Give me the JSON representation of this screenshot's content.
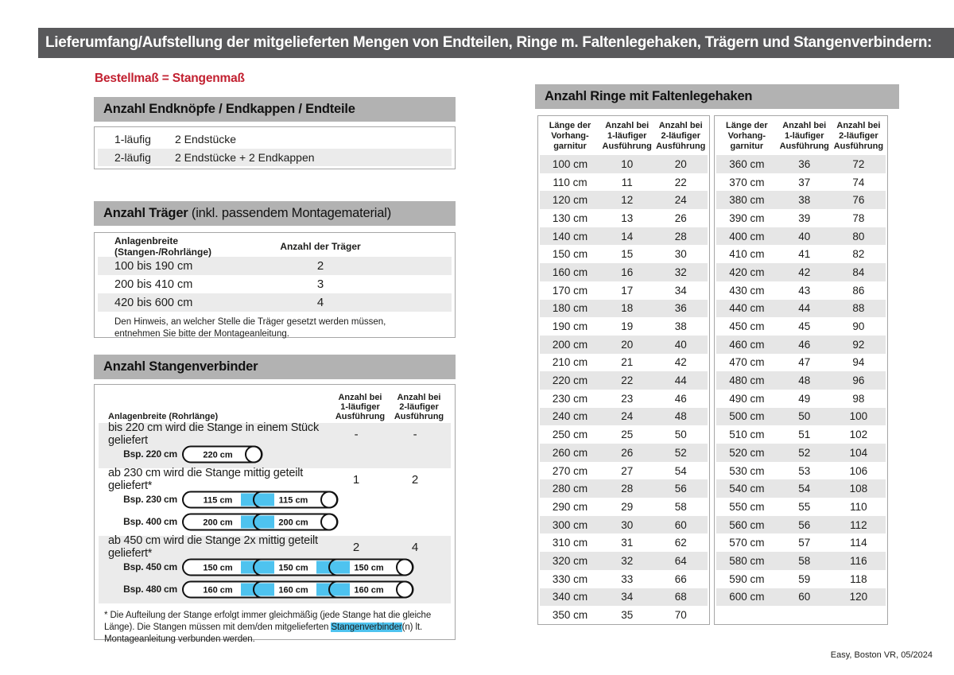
{
  "page": {
    "title": "Lieferumfang/Aufstellung der mitgelieferten Mengen von Endteilen, Ringe m. Faltenlegehaken, Trägern und Stangenverbindern:",
    "subtitle": "Bestellmaß = Stangenmaß",
    "footer": "Easy, Boston VR, 05/2024"
  },
  "colors": {
    "topbar_gray": "#59595b",
    "section_header_gray": "#b2b2b2",
    "stripe_gray": "#ebebeb",
    "accent_red": "#c22030",
    "connector_blue": "#4ec3ef",
    "outline_black": "#111111"
  },
  "endteile": {
    "header": "Anzahl Endknöpfe / Endkappen / Endteile",
    "rows": [
      {
        "label": "1-läufig",
        "value": "2 Endstücke"
      },
      {
        "label": "2-läufig",
        "value": "2 Endstücke + 2 Endkappen"
      }
    ]
  },
  "traeger": {
    "header_bold": "Anzahl Träger",
    "header_rest": " (inkl. passendem Montagematerial)",
    "col1": "Anlagenbreite (Stangen-/Rohrlänge)",
    "col2": "Anzahl der Träger",
    "rows": [
      {
        "range": "100 bis 190 cm",
        "count": "2"
      },
      {
        "range": "200 bis 410 cm",
        "count": "3"
      },
      {
        "range": "420 bis 600 cm",
        "count": "4"
      }
    ],
    "note": "Den Hinweis, an welcher Stelle die Träger gesetzt werden müssen, entnehmen Sie bitte der Montageanleitung."
  },
  "stangenverbinder": {
    "header": "Anzahl Stangenverbinder",
    "col1": "Anlagenbreite (Rohrlänge)",
    "col2": "Anzahl bei\n1-läufiger\nAusführung",
    "col3": "Anzahl bei\n2-läufiger\nAusführung",
    "blocks": [
      {
        "text": "bis 220 cm wird die Stange in einem Stück geliefert",
        "val1": "-",
        "val2": "-",
        "shaded": true,
        "rods": [
          {
            "label": "Bsp. 220 cm",
            "segments": [
              "220 cm"
            ]
          }
        ]
      },
      {
        "text": "ab 230 cm wird die Stange mittig geteilt geliefert*",
        "val1": "1",
        "val2": "2",
        "shaded": false,
        "rods": [
          {
            "label": "Bsp. 230 cm",
            "segments": [
              "115 cm",
              "115 cm"
            ]
          },
          {
            "label": "Bsp. 400 cm",
            "segments": [
              "200 cm",
              "200 cm"
            ]
          }
        ]
      },
      {
        "text": "ab 450 cm wird die Stange 2x mittig geteilt geliefert*",
        "val1": "2",
        "val2": "4",
        "shaded": true,
        "rods": [
          {
            "label": "Bsp. 450 cm",
            "segments": [
              "150 cm",
              "150 cm",
              "150 cm"
            ]
          },
          {
            "label": "Bsp. 480 cm",
            "segments": [
              "160 cm",
              "160 cm",
              "160 cm"
            ]
          }
        ]
      }
    ],
    "footnote_pre": "* Die Aufteilung der Stange erfolgt immer gleichmäßig (jede Stange hat die gleiche Länge). Die Stangen müssen mit dem/den mitgelieferten ",
    "footnote_highlight": "Stangenverbinder",
    "footnote_post": "(n) lt. Montageanleitung verbunden werden."
  },
  "ringe": {
    "header": "Anzahl Ringe mit Faltenlegehaken",
    "col_headers": [
      "Länge der\nVorhang-\ngarnitur",
      "Anzahl bei\n1-läufiger\nAusführung",
      "Anzahl bei\n2-läufiger\nAusführung"
    ],
    "table1": [
      [
        "100 cm",
        10,
        20
      ],
      [
        "110 cm",
        11,
        22
      ],
      [
        "120 cm",
        12,
        24
      ],
      [
        "130 cm",
        13,
        26
      ],
      [
        "140 cm",
        14,
        28
      ],
      [
        "150 cm",
        15,
        30
      ],
      [
        "160 cm",
        16,
        32
      ],
      [
        "170 cm",
        17,
        34
      ],
      [
        "180 cm",
        18,
        36
      ],
      [
        "190 cm",
        19,
        38
      ],
      [
        "200 cm",
        20,
        40
      ],
      [
        "210 cm",
        21,
        42
      ],
      [
        "220 cm",
        22,
        44
      ],
      [
        "230 cm",
        23,
        46
      ],
      [
        "240 cm",
        24,
        48
      ],
      [
        "250 cm",
        25,
        50
      ],
      [
        "260 cm",
        26,
        52
      ],
      [
        "270 cm",
        27,
        54
      ],
      [
        "280 cm",
        28,
        56
      ],
      [
        "290 cm",
        29,
        58
      ],
      [
        "300 cm",
        30,
        60
      ],
      [
        "310 cm",
        31,
        62
      ],
      [
        "320 cm",
        32,
        64
      ],
      [
        "330 cm",
        33,
        66
      ],
      [
        "340 cm",
        34,
        68
      ],
      [
        "350 cm",
        35,
        70
      ]
    ],
    "table2": [
      [
        "360 cm",
        36,
        72
      ],
      [
        "370 cm",
        37,
        74
      ],
      [
        "380 cm",
        38,
        76
      ],
      [
        "390 cm",
        39,
        78
      ],
      [
        "400 cm",
        40,
        80
      ],
      [
        "410 cm",
        41,
        82
      ],
      [
        "420 cm",
        42,
        84
      ],
      [
        "430 cm",
        43,
        86
      ],
      [
        "440 cm",
        44,
        88
      ],
      [
        "450 cm",
        45,
        90
      ],
      [
        "460 cm",
        46,
        92
      ],
      [
        "470 cm",
        47,
        94
      ],
      [
        "480 cm",
        48,
        96
      ],
      [
        "490 cm",
        49,
        98
      ],
      [
        "500 cm",
        50,
        100
      ],
      [
        "510 cm",
        51,
        102
      ],
      [
        "520 cm",
        52,
        104
      ],
      [
        "530 cm",
        53,
        106
      ],
      [
        "540 cm",
        54,
        108
      ],
      [
        "550 cm",
        55,
        110
      ],
      [
        "560 cm",
        56,
        112
      ],
      [
        "570 cm",
        57,
        114
      ],
      [
        "580 cm",
        58,
        116
      ],
      [
        "590 cm",
        59,
        118
      ],
      [
        "600 cm",
        60,
        120
      ]
    ]
  }
}
